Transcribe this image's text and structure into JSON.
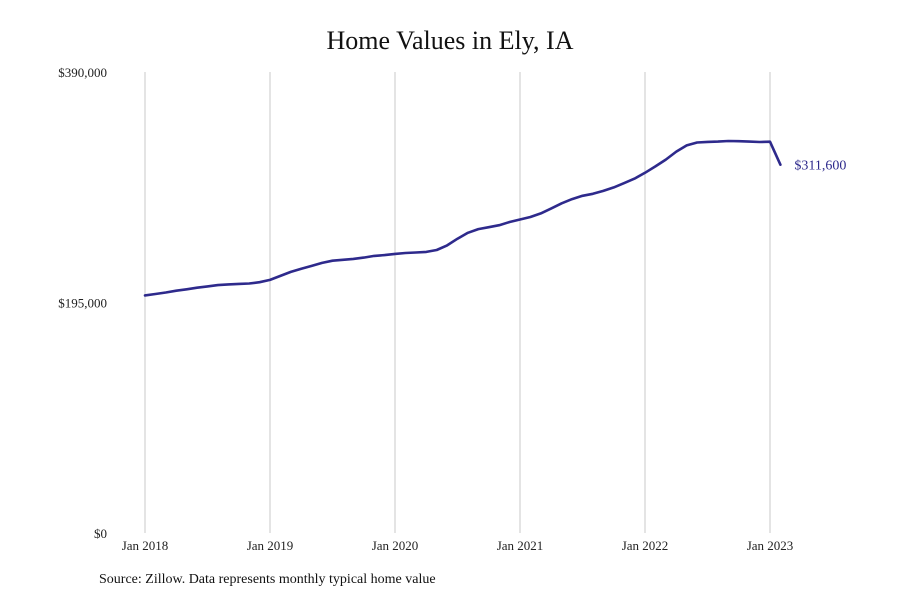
{
  "chart_data": {
    "type": "line",
    "title": "Home Values in Ely, IA",
    "source": "Source: Zillow. Data represents monthly typical home value",
    "ylim": [
      0,
      390000
    ],
    "y_ticks": [
      0,
      195000,
      390000
    ],
    "y_tick_labels": [
      "$0",
      "$195,000",
      "$390,000"
    ],
    "x_ticks": [
      "2018-01",
      "2019-01",
      "2020-01",
      "2021-01",
      "2022-01",
      "2023-01"
    ],
    "x_tick_labels": [
      "Jan 2018",
      "Jan 2019",
      "Jan 2020",
      "Jan 2021",
      "Jan 2022",
      "Jan 2023"
    ],
    "grid": "vertical",
    "color": "#2e2a8c",
    "end_label": "$311,600",
    "series": [
      {
        "x": [
          "2018-01",
          "2018-02",
          "2018-03",
          "2018-04",
          "2018-05",
          "2018-06",
          "2018-07",
          "2018-08",
          "2018-09",
          "2018-10",
          "2018-11",
          "2018-12",
          "2019-01",
          "2019-02",
          "2019-03",
          "2019-04",
          "2019-05",
          "2019-06",
          "2019-07",
          "2019-08",
          "2019-09",
          "2019-10",
          "2019-11",
          "2019-12",
          "2020-01",
          "2020-02",
          "2020-03",
          "2020-04",
          "2020-05",
          "2020-06",
          "2020-07",
          "2020-08",
          "2020-09",
          "2020-10",
          "2020-11",
          "2020-12",
          "2021-01",
          "2021-02",
          "2021-03",
          "2021-04",
          "2021-05",
          "2021-06",
          "2021-07",
          "2021-08",
          "2021-09",
          "2021-10",
          "2021-11",
          "2021-12",
          "2022-01",
          "2022-02",
          "2022-03",
          "2022-04",
          "2022-05",
          "2022-06",
          "2022-07",
          "2022-08",
          "2022-09",
          "2022-10",
          "2022-11",
          "2022-12",
          "2023-01",
          "2023-02"
        ],
        "y": [
          201000,
          202200,
          203500,
          205000,
          206200,
          207500,
          208600,
          209700,
          210300,
          210700,
          211100,
          212200,
          214100,
          217500,
          220900,
          223600,
          226000,
          228500,
          230400,
          231100,
          231900,
          233000,
          234400,
          235100,
          236100,
          236900,
          237300,
          237800,
          239400,
          243300,
          249000,
          254000,
          257100,
          258700,
          260400,
          263100,
          265200,
          267300,
          270400,
          274600,
          278900,
          282500,
          285300,
          287000,
          289400,
          292400,
          296000,
          299800,
          304700,
          310100,
          315900,
          322700,
          327900,
          330400,
          330900,
          331100,
          331600,
          331500,
          331100,
          330800,
          331000,
          311600
        ]
      }
    ]
  }
}
